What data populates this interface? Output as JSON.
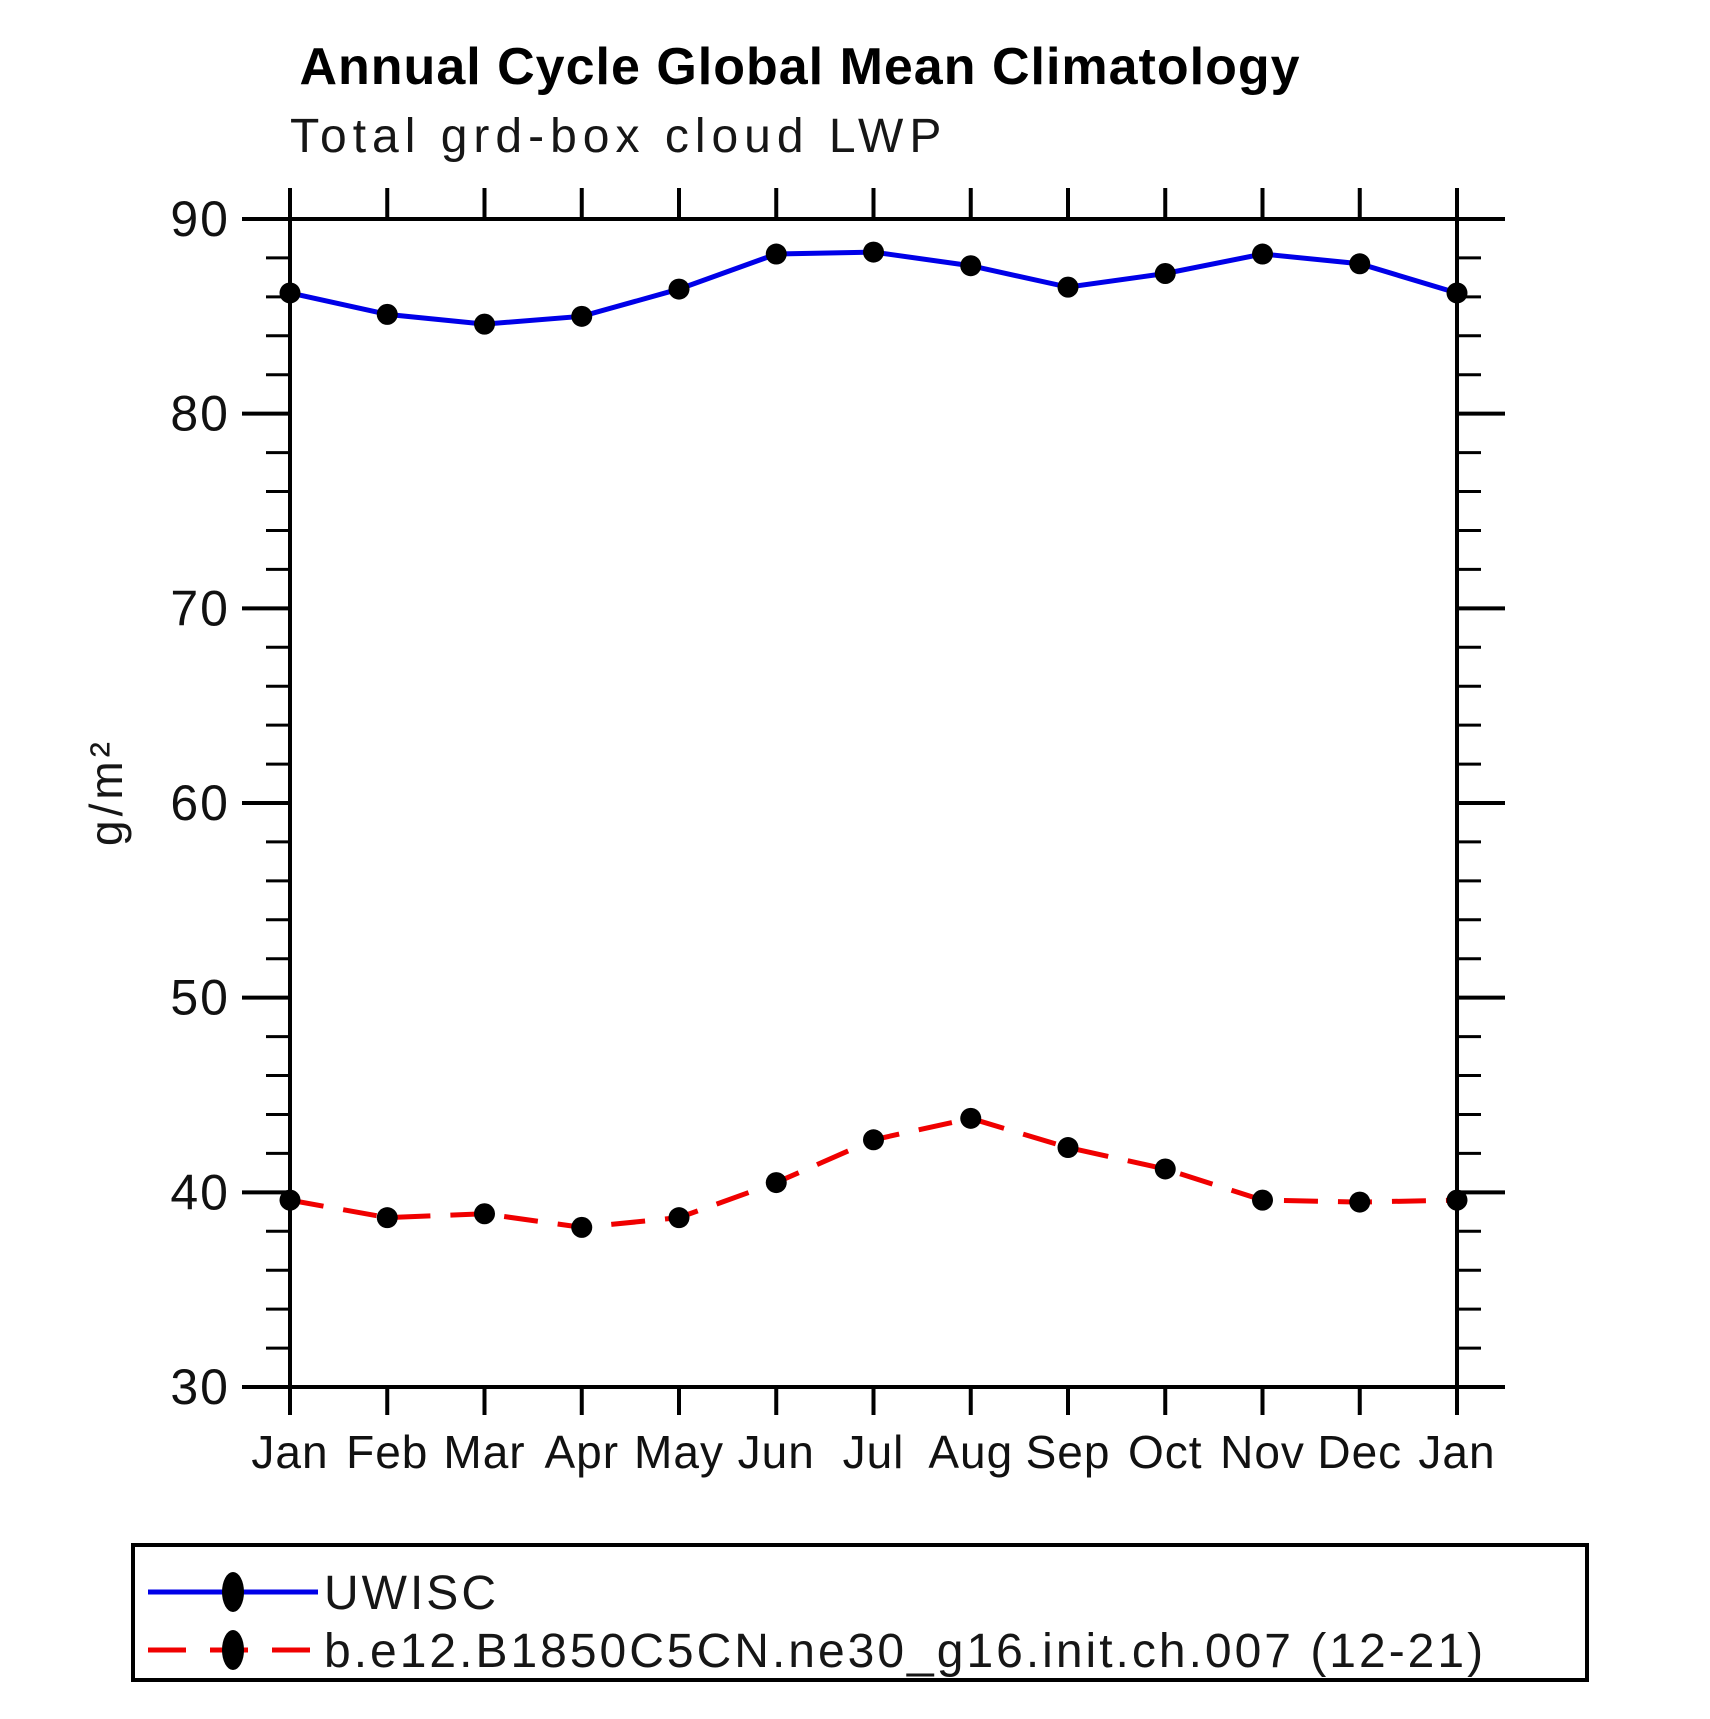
{
  "chart_data": {
    "type": "line",
    "title": "Annual Cycle Global Mean Climatology",
    "subtitle": "Total grd-box cloud LWP",
    "xlabel": "",
    "ylabel": "g/m²",
    "ylim": [
      30,
      90
    ],
    "ytick_major": [
      30,
      40,
      50,
      60,
      70,
      80,
      90
    ],
    "ytick_minor_step": 2,
    "grid": false,
    "legend_position": "bottom-left-box",
    "marker": "filled-circle",
    "marker_color": "#000000",
    "axis_color": "#000000",
    "categories": [
      "Jan",
      "Feb",
      "Mar",
      "Apr",
      "May",
      "Jun",
      "Jul",
      "Aug",
      "Sep",
      "Oct",
      "Nov",
      "Dec",
      "Jan"
    ],
    "series": [
      {
        "name": "UWISC",
        "color": "#0000e8",
        "line_style": "solid",
        "values": [
          86.2,
          85.1,
          84.6,
          85.0,
          86.4,
          88.2,
          88.3,
          87.6,
          86.5,
          87.2,
          88.2,
          87.7,
          86.2
        ]
      },
      {
        "name": "b.e12.B1850C5CN.ne30_g16.init.ch.007 (12-21)",
        "color": "#f00000",
        "line_style": "dashed",
        "values": [
          39.6,
          38.7,
          38.9,
          38.2,
          38.7,
          40.5,
          42.7,
          43.8,
          42.3,
          41.2,
          39.6,
          39.5,
          39.6
        ]
      }
    ]
  }
}
